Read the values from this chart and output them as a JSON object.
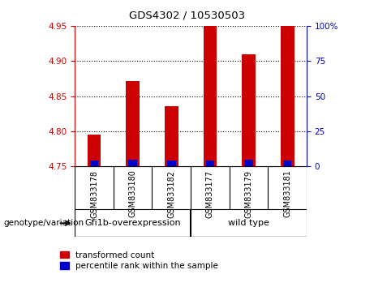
{
  "title": "GDS4302 / 10530503",
  "categories": [
    "GSM833178",
    "GSM833180",
    "GSM833182",
    "GSM833177",
    "GSM833179",
    "GSM833181"
  ],
  "group_labels": [
    "Gfi1b-overexpression",
    "wild type"
  ],
  "ylim_left": [
    4.75,
    4.95
  ],
  "ylim_right": [
    0,
    100
  ],
  "yticks_left": [
    4.75,
    4.8,
    4.85,
    4.9,
    4.95
  ],
  "yticks_right": [
    0,
    25,
    50,
    75,
    100
  ],
  "red_bar_tops": [
    4.795,
    4.872,
    4.836,
    4.95,
    4.91,
    4.95
  ],
  "blue_bar_tops": [
    4.758,
    4.76,
    4.758,
    4.758,
    4.76,
    4.758
  ],
  "bar_bottom": 4.75,
  "bar_width": 0.35,
  "blue_bar_width": 0.22,
  "red_color": "#cc0000",
  "blue_color": "#0000cc",
  "left_axis_color": "#cc0000",
  "right_axis_color": "#0000cc",
  "grid_color": "#000000",
  "tick_bg": "#c8c8c8",
  "group_bg": "#90ee90",
  "legend_red_label": "transformed count",
  "legend_blue_label": "percentile rank within the sample",
  "genotype_label": "genotype/variation"
}
